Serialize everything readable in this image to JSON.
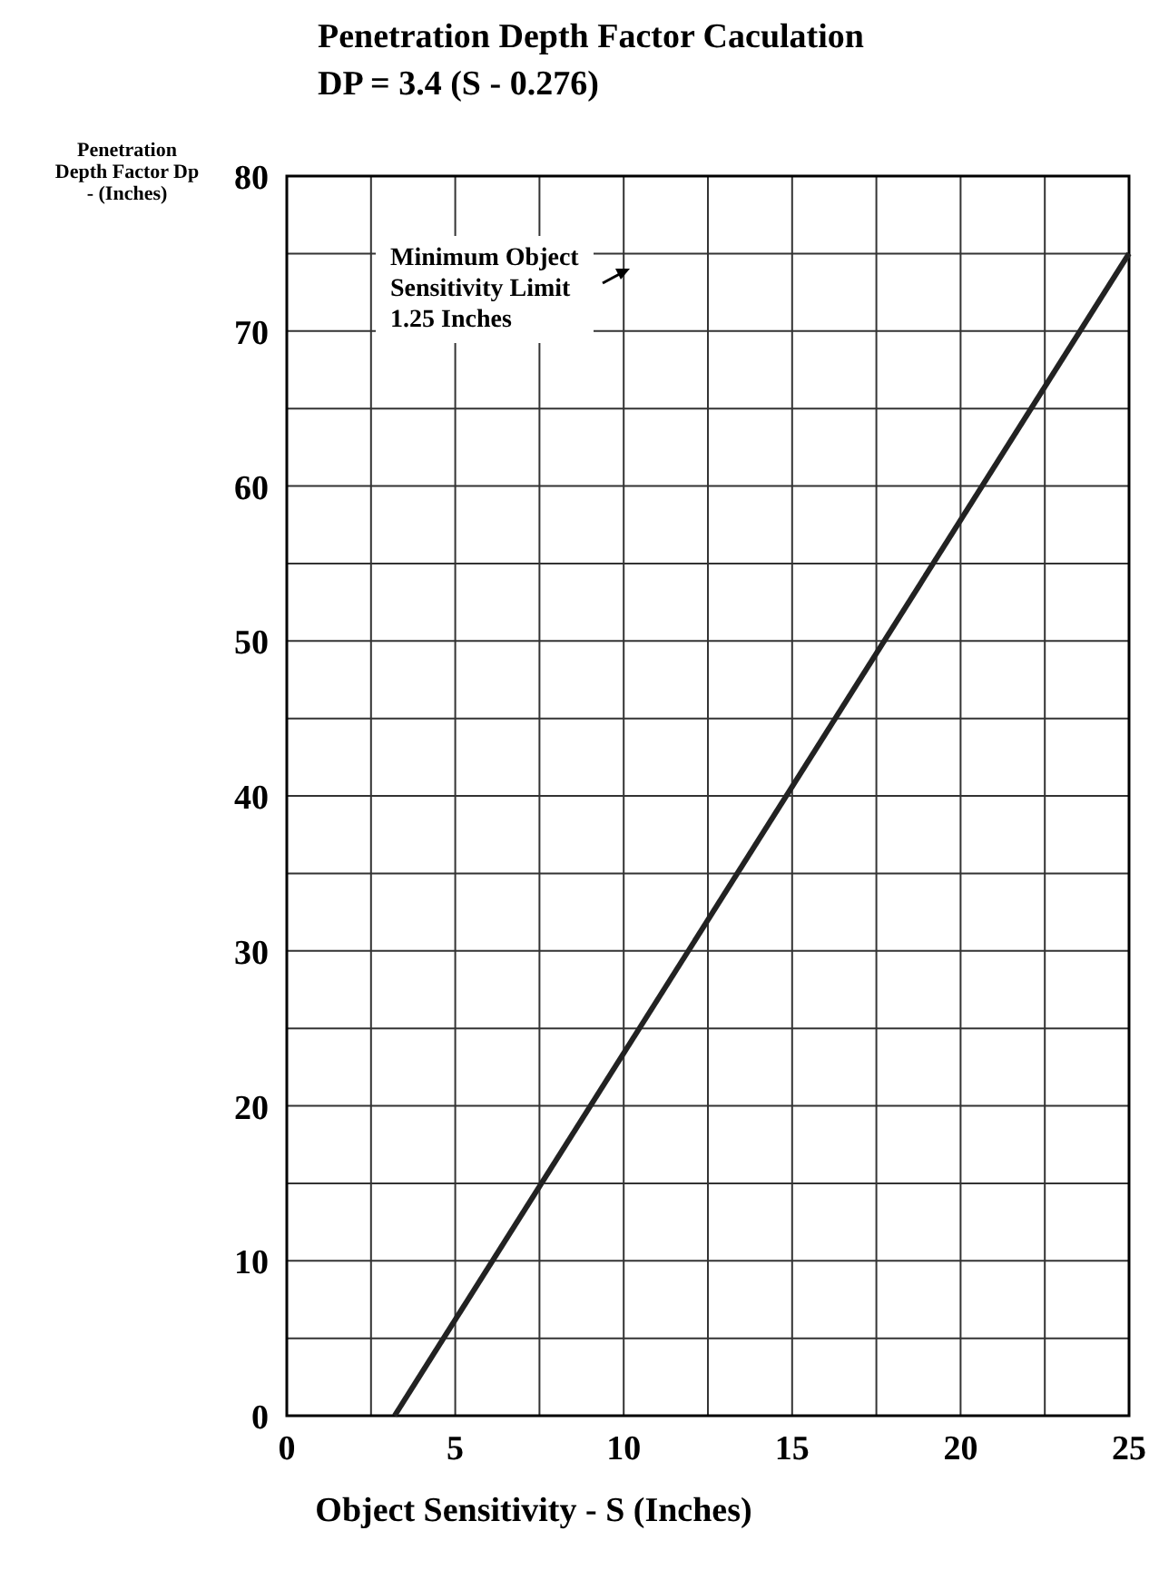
{
  "chart_data": {
    "type": "line",
    "title": "Penetration Depth Factor Caculation",
    "subtitle": "DP = 3.4 (S - 0.276)",
    "xlabel": "Object Sensitivity - S (Inches)",
    "ylabel": "Penetration Depth Factor Dp - (Inches)",
    "annotations": [
      "Minimum Object Sensitivity Limit 1.25 Inches"
    ],
    "x": [
      3.2,
      25
    ],
    "series": [
      {
        "color": "#222222",
        "values": [
          0,
          75
        ]
      }
    ],
    "xlim": [
      0,
      25
    ],
    "ylim": [
      0,
      80
    ],
    "xticks": [
      0,
      {
        "value": 2.5,
        "label": null
      },
      5,
      {
        "value": 7.5,
        "label": null
      },
      10,
      {
        "value": 12.5,
        "label": null
      },
      15,
      {
        "value": 17.5,
        "label": null
      },
      20,
      {
        "value": 22.5,
        "label": null
      },
      25
    ],
    "yticks": [
      0,
      {
        "value": 5,
        "label": null
      },
      10,
      {
        "value": 15,
        "label": null
      },
      20,
      {
        "value": 25,
        "label": null
      },
      30,
      {
        "value": 35,
        "label": null
      },
      40,
      {
        "value": 45,
        "label": null
      },
      50,
      {
        "value": 55,
        "label": null
      },
      60,
      {
        "value": 65,
        "label": null
      },
      70,
      {
        "value": 75,
        "label": null
      },
      80
    ],
    "grid": true,
    "marker": "none",
    "line_style": "solid"
  }
}
